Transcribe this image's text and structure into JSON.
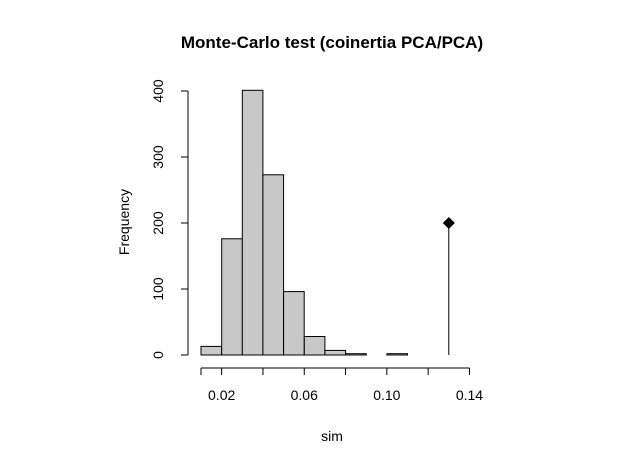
{
  "chart_data": {
    "type": "bar",
    "subtype": "histogram",
    "title": "Monte-Carlo test (coinertia PCA/PCA)",
    "xlabel": "sim",
    "ylabel": "Frequency",
    "bins": [
      {
        "x0": 0.01,
        "x1": 0.02,
        "count": 13
      },
      {
        "x0": 0.02,
        "x1": 0.03,
        "count": 176
      },
      {
        "x0": 0.03,
        "x1": 0.04,
        "count": 401
      },
      {
        "x0": 0.04,
        "x1": 0.05,
        "count": 273
      },
      {
        "x0": 0.05,
        "x1": 0.06,
        "count": 96
      },
      {
        "x0": 0.06,
        "x1": 0.07,
        "count": 28
      },
      {
        "x0": 0.07,
        "x1": 0.08,
        "count": 7
      },
      {
        "x0": 0.08,
        "x1": 0.09,
        "count": 2
      },
      {
        "x0": 0.09,
        "x1": 0.1,
        "count": 0
      },
      {
        "x0": 0.1,
        "x1": 0.11,
        "count": 2
      }
    ],
    "observed": {
      "x": 0.13,
      "y": 200
    },
    "xlim": [
      0.0,
      0.14
    ],
    "ylim": [
      0,
      400
    ],
    "x_ticks": [
      0.01,
      0.02,
      0.04,
      0.06,
      0.08,
      0.1,
      0.12,
      0.14
    ],
    "x_tick_labels": [
      "0.02",
      "0.06",
      "0.10",
      "0.14"
    ],
    "y_ticks": [
      0,
      100,
      200,
      300,
      400
    ],
    "y_tick_labels": [
      "0",
      "100",
      "200",
      "300",
      "400"
    ],
    "grid": false,
    "colors": {
      "bar_fill": "#c8c8c8",
      "bar_stroke": "#000000",
      "observed_marker": "#000000"
    }
  }
}
